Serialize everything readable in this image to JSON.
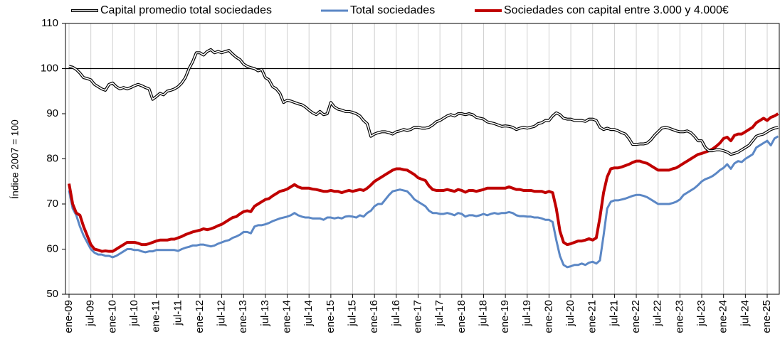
{
  "chart_data": {
    "type": "line",
    "ylabel": "Índice 2007 = 100",
    "categories": [
      "ene-09",
      null,
      null,
      null,
      null,
      null,
      "jul-09",
      null,
      null,
      null,
      null,
      null,
      "ene-10",
      null,
      null,
      null,
      null,
      null,
      "jul-10",
      null,
      null,
      null,
      null,
      null,
      "ene-11",
      null,
      null,
      null,
      null,
      null,
      "jul-11",
      null,
      null,
      null,
      null,
      null,
      "ene-12",
      null,
      null,
      null,
      null,
      null,
      "jul-12",
      null,
      null,
      null,
      null,
      null,
      "ene-13",
      null,
      null,
      null,
      null,
      null,
      "jul-13",
      null,
      null,
      null,
      null,
      null,
      "ene-14",
      null,
      null,
      null,
      null,
      null,
      "jul-14",
      null,
      null,
      null,
      null,
      null,
      "ene-15",
      null,
      null,
      null,
      null,
      null,
      "jul-15",
      null,
      null,
      null,
      null,
      null,
      "ene-16",
      null,
      null,
      null,
      null,
      null,
      "jul-16",
      null,
      null,
      null,
      null,
      null,
      "ene-17",
      null,
      null,
      null,
      null,
      null,
      "jul-17",
      null,
      null,
      null,
      null,
      null,
      "ene-18",
      null,
      null,
      null,
      null,
      null,
      "jul-18",
      null,
      null,
      null,
      null,
      null,
      "ene-19",
      null,
      null,
      null,
      null,
      null,
      "jul-19",
      null,
      null,
      null,
      null,
      null,
      "ene-20",
      null,
      null,
      null,
      null,
      null,
      "jul-20",
      null,
      null,
      null,
      null,
      null,
      "ene-21",
      null,
      null,
      null,
      null,
      null,
      "jul-21",
      null,
      null,
      null,
      null,
      null,
      "ene-22",
      null,
      null,
      null,
      null,
      null,
      "jul-22",
      null,
      null,
      null,
      null,
      null,
      "ene-23",
      null,
      null,
      null,
      null,
      null,
      "jul-23",
      null,
      null,
      null,
      null,
      null,
      "ene-24",
      null,
      null,
      null,
      null,
      null,
      "jul-24",
      null,
      null,
      null,
      null,
      null,
      "ene-25",
      null,
      null,
      null
    ],
    "series": [
      {
        "name": "Capital promedio total sociedades",
        "color": "#000000",
        "style": "double",
        "values": [
          100.5,
          100.3,
          99.8,
          99,
          98,
          97.8,
          97.5,
          96.5,
          96,
          95.5,
          95.2,
          96.5,
          96.8,
          96,
          95.5,
          95.8,
          95.5,
          95.8,
          96.2,
          96.5,
          96.2,
          95.8,
          95.5,
          93.2,
          93.8,
          94.5,
          94.2,
          95,
          95.2,
          95.5,
          96,
          96.8,
          98,
          100,
          101.5,
          103.5,
          103.5,
          103,
          103.8,
          104.2,
          103.5,
          103.8,
          103.5,
          103.8,
          104,
          103.2,
          102.5,
          102,
          101,
          100.5,
          100.2,
          100,
          99.5,
          99.8,
          98,
          97.5,
          96,
          95.5,
          94.5,
          92.5,
          93,
          92.8,
          92.5,
          92.2,
          92,
          91.5,
          90.8,
          90.2,
          89.8,
          90.5,
          89.8,
          90,
          92.5,
          91.5,
          91,
          90.8,
          90.5,
          90.5,
          90.3,
          90,
          89.5,
          88.5,
          87.8,
          85,
          85.5,
          85.8,
          86,
          86,
          85.8,
          85.5,
          86,
          86.2,
          86.5,
          86.3,
          86.5,
          87,
          87,
          86.8,
          86.8,
          87,
          87.5,
          88.2,
          88.5,
          89,
          89.5,
          89.8,
          89.5,
          90,
          90,
          89.8,
          90,
          89.8,
          89.2,
          89,
          88.8,
          88.2,
          88,
          87.8,
          87.5,
          87.2,
          87.3,
          87.2,
          87,
          86.5,
          86.8,
          87,
          86.8,
          87,
          87.2,
          87.8,
          88,
          88.5,
          88.5,
          89.5,
          90.2,
          89.8,
          89,
          88.8,
          88.8,
          88.5,
          88.5,
          88.5,
          88.3,
          88.8,
          88.8,
          88.5,
          87,
          86.5,
          86.8,
          86.5,
          86.5,
          86.2,
          85.8,
          85.5,
          84.5,
          83.2,
          83.2,
          83.3,
          83.3,
          83.5,
          84.2,
          85.2,
          86,
          86.8,
          87,
          86.8,
          86.5,
          86.2,
          86,
          86,
          86.2,
          85.8,
          85,
          84,
          84,
          82.5,
          81.8,
          81.8,
          82,
          82,
          81.8,
          81.5,
          81,
          81.2,
          81.5,
          82,
          82.5,
          83,
          84,
          85,
          85.3,
          85.5,
          86,
          86.5,
          86.8,
          87
        ]
      },
      {
        "name": "Total sociedades",
        "color": "#5b87c5",
        "style": "solid",
        "values": [
          73,
          69,
          67.5,
          65,
          63,
          61.5,
          60,
          59.2,
          58.8,
          58.8,
          58.5,
          58.5,
          58.2,
          58.5,
          59,
          59.5,
          60,
          60,
          59.8,
          59.8,
          59.5,
          59.3,
          59.5,
          59.5,
          59.8,
          59.8,
          59.8,
          59.8,
          59.8,
          59.8,
          59.6,
          60,
          60.3,
          60.5,
          60.8,
          60.8,
          61,
          61,
          60.8,
          60.6,
          60.8,
          61.2,
          61.5,
          61.8,
          62,
          62.5,
          62.8,
          63.2,
          63.8,
          63.8,
          63.5,
          65,
          65.3,
          65.3,
          65.5,
          65.8,
          66.2,
          66.5,
          66.8,
          67,
          67.2,
          67.5,
          68,
          67.5,
          67.2,
          67,
          67,
          66.8,
          66.8,
          66.8,
          66.5,
          67,
          67,
          66.8,
          67,
          66.8,
          67.2,
          67.3,
          67.2,
          67,
          67.5,
          67.2,
          68,
          68.5,
          69.5,
          70,
          70,
          71,
          72,
          72.8,
          73,
          73.2,
          73,
          72.8,
          72,
          71,
          70.5,
          70,
          69.5,
          68.5,
          68,
          68,
          67.8,
          67.8,
          68,
          67.8,
          67.5,
          68,
          67.8,
          67.2,
          67.5,
          67.5,
          67.3,
          67.5,
          67.8,
          67.5,
          67.8,
          68,
          67.8,
          68,
          68,
          68.2,
          68,
          67.5,
          67.3,
          67.3,
          67.2,
          67.2,
          67,
          67,
          66.8,
          66.5,
          66.5,
          66,
          62,
          58.5,
          56.5,
          56,
          56.2,
          56.5,
          56.5,
          56.8,
          56.5,
          57,
          57.2,
          56.8,
          57.5,
          63,
          69,
          70.5,
          70.8,
          70.8,
          71,
          71.2,
          71.5,
          71.8,
          72,
          72,
          71.8,
          71.5,
          71,
          70.5,
          70,
          70,
          70,
          70,
          70.2,
          70.5,
          71,
          72,
          72.5,
          73,
          73.5,
          74.2,
          75,
          75.5,
          75.8,
          76.2,
          76.8,
          77.5,
          78,
          78.8,
          77.8,
          79,
          79.5,
          79.3,
          80,
          80.5,
          81,
          82.5,
          83,
          83.5,
          84,
          83,
          84.5,
          85
        ]
      },
      {
        "name": "Sociedades con capital entre 3.000 y 4.000€",
        "color": "#c00000",
        "style": "solid",
        "values": [
          74.5,
          70,
          68,
          67.5,
          65,
          63,
          61,
          60,
          59.8,
          59.5,
          59.6,
          59.5,
          59.5,
          60,
          60.5,
          61,
          61.5,
          61.5,
          61.5,
          61.3,
          61,
          61,
          61.2,
          61.5,
          61.8,
          62,
          62,
          62,
          62.2,
          62.2,
          62.5,
          62.8,
          63.2,
          63.5,
          63.8,
          64,
          64.2,
          64.5,
          64.3,
          64.5,
          64.8,
          65.2,
          65.5,
          66,
          66.5,
          67,
          67.2,
          67.8,
          68.3,
          68.5,
          68.3,
          69.5,
          70,
          70.5,
          71,
          71.2,
          71.8,
          72.3,
          72.8,
          73,
          73.3,
          73.8,
          74.3,
          73.8,
          73.5,
          73.5,
          73.5,
          73.3,
          73.2,
          73,
          72.8,
          72.8,
          73,
          72.8,
          72.8,
          72.5,
          72.8,
          73,
          72.8,
          73,
          73.2,
          73,
          73.5,
          74.2,
          75,
          75.5,
          76,
          76.5,
          77,
          77.5,
          77.8,
          77.8,
          77.6,
          77.5,
          77,
          76.5,
          75.8,
          75.5,
          75.2,
          74,
          73.2,
          73,
          73,
          73,
          73.2,
          73,
          72.8,
          73.2,
          73,
          72.6,
          73,
          73,
          72.8,
          73,
          73.2,
          73.5,
          73.5,
          73.5,
          73.5,
          73.5,
          73.5,
          73.8,
          73.5,
          73.2,
          73.2,
          73,
          73,
          73,
          72.8,
          72.8,
          72.8,
          72.5,
          72.8,
          72.5,
          69,
          64,
          61.5,
          61,
          61.2,
          61.5,
          61.8,
          61.8,
          62,
          62.3,
          62,
          62.5,
          67,
          72.5,
          76,
          77.8,
          78,
          78,
          78.2,
          78.5,
          78.8,
          79.2,
          79.5,
          79.5,
          79.2,
          79,
          78.5,
          78,
          77.5,
          77.5,
          77.5,
          77.5,
          77.8,
          78,
          78.5,
          79,
          79.5,
          80,
          80.5,
          81,
          81.2,
          81.5,
          81.8,
          82.2,
          82.8,
          83.5,
          84.5,
          84.8,
          84,
          85.2,
          85.5,
          85.5,
          86,
          86.5,
          87,
          88,
          88.5,
          89,
          88.5,
          89.2,
          89.5,
          90
        ]
      }
    ],
    "ylim": [
      50,
      110
    ],
    "yticks": [
      50,
      60,
      70,
      80,
      90,
      100,
      110
    ],
    "reference_line": 100,
    "grid": "x",
    "legend": "top"
  }
}
